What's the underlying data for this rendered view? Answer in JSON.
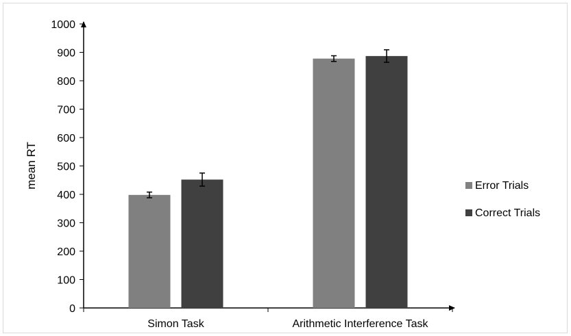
{
  "chart_data": {
    "type": "bar",
    "title": "",
    "xlabel": "",
    "ylabel": "mean RT",
    "ylim": [
      0,
      1000
    ],
    "y_ticks": [
      0,
      100,
      200,
      300,
      400,
      500,
      600,
      700,
      800,
      900,
      1000
    ],
    "categories": [
      "Simon Task",
      "Arithmetic Interference Task"
    ],
    "series": [
      {
        "name": "Error Trials",
        "values": [
          398,
          878
        ],
        "errors": [
          10,
          10
        ],
        "color": "#808080"
      },
      {
        "name": "Correct Trials",
        "values": [
          452,
          887
        ],
        "errors": [
          23,
          22
        ],
        "color": "#404040"
      }
    ],
    "legend_position": "right",
    "grid": false
  }
}
